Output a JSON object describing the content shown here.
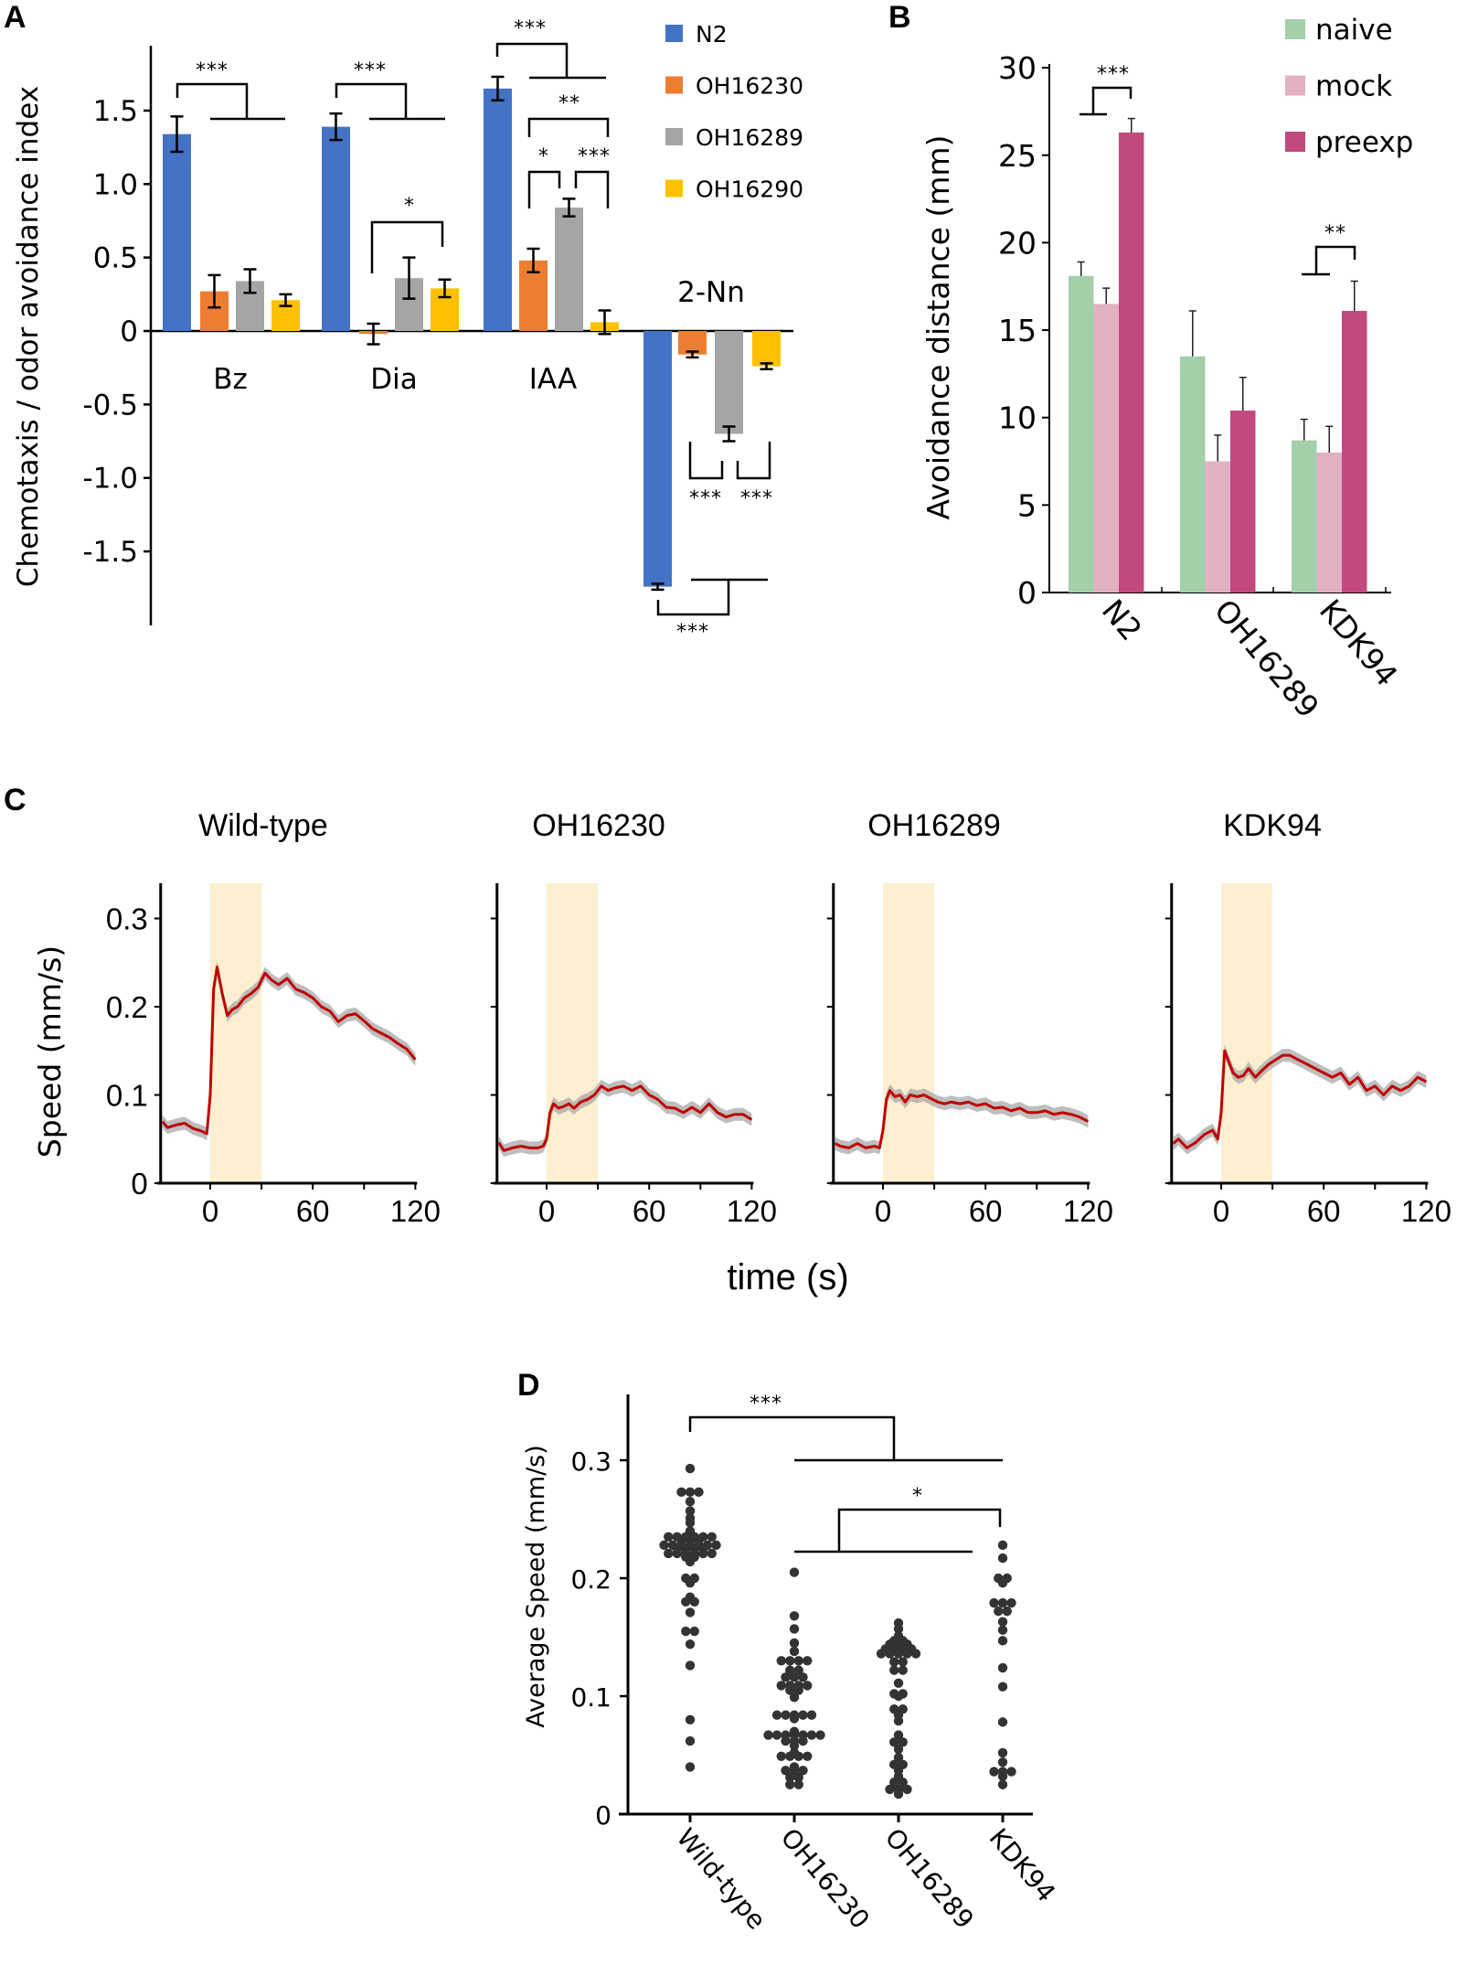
{
  "panel_labels": {
    "a": "A",
    "b": "B",
    "c": "C",
    "d": "D"
  },
  "chart_data": [
    {
      "id": "A",
      "type": "bar",
      "title": "",
      "xlabel": "",
      "ylabel": "Chemotaxis / odor avoidance index",
      "ylim": [
        -1.95,
        1.95
      ],
      "yticks": [
        1.5,
        1.0,
        0.5,
        0,
        -0.5,
        -1.0,
        -1.5
      ],
      "ytick_labels": [
        "1.5",
        "1.0",
        "0.5",
        "0",
        "-0.5",
        "-1.0",
        "-1.5"
      ],
      "categories": [
        "Bz",
        "Dia",
        "IAA",
        "2-Nn"
      ],
      "legend_position": "top-right",
      "series": [
        {
          "name": "N2",
          "color": "#4472c4",
          "values": [
            1.34,
            1.39,
            1.65,
            -1.74
          ],
          "errors": [
            0.12,
            0.09,
            0.08,
            0.02
          ]
        },
        {
          "name": "OH16230",
          "color": "#ed7d31",
          "values": [
            0.27,
            -0.02,
            0.48,
            -0.16
          ],
          "errors": [
            0.11,
            0.07,
            0.08,
            0.02
          ]
        },
        {
          "name": "OH16289",
          "color": "#a5a5a5",
          "values": [
            0.34,
            0.36,
            0.84,
            -0.7
          ],
          "errors": [
            0.08,
            0.14,
            0.06,
            0.05
          ]
        },
        {
          "name": "OH16290",
          "color": "#ffc000",
          "values": [
            0.21,
            0.29,
            0.06,
            -0.24
          ],
          "errors": [
            0.04,
            0.06,
            0.08,
            0.02
          ]
        }
      ],
      "significance": [
        {
          "category": "Bz",
          "compare": "N2 vs all mutants",
          "label": "***"
        },
        {
          "category": "Dia",
          "compare": "N2 vs all mutants",
          "label": "***"
        },
        {
          "category": "Dia",
          "compare": "OH16230 vs OH16290",
          "label": "*"
        },
        {
          "category": "IAA",
          "compare": "N2 vs all mutants",
          "label": "***"
        },
        {
          "category": "IAA",
          "compare": "OH16230 vs OH16290",
          "label": "**"
        },
        {
          "category": "IAA",
          "compare": "OH16230 vs OH16289",
          "label": "*"
        },
        {
          "category": "IAA",
          "compare": "OH16289 vs OH16290",
          "label": "***"
        },
        {
          "category": "2-Nn",
          "compare": "OH16230 vs OH16289",
          "label": "***"
        },
        {
          "category": "2-Nn",
          "compare": "OH16289 vs OH16290",
          "label": "***"
        },
        {
          "category": "2-Nn",
          "compare": "N2 vs all mutants",
          "label": "***"
        }
      ]
    },
    {
      "id": "B",
      "type": "bar",
      "title": "",
      "xlabel": "",
      "ylabel": "Avoidance distance (mm)",
      "ylim": [
        0,
        30
      ],
      "yticks": [
        0,
        5,
        10,
        15,
        20,
        25,
        30
      ],
      "ytick_labels": [
        "0",
        "5",
        "10",
        "15",
        "20",
        "25",
        "30"
      ],
      "categories": [
        "N2",
        "OH16289",
        "KDK94"
      ],
      "legend_position": "top-right",
      "series": [
        {
          "name": "naive",
          "color": "#a3cfa9",
          "values": [
            18.1,
            13.5,
            8.7
          ],
          "errors": [
            0.8,
            2.6,
            1.2
          ]
        },
        {
          "name": "mock",
          "color": "#e3b0c2",
          "values": [
            16.5,
            7.5,
            8.0
          ],
          "errors": [
            0.9,
            1.5,
            1.5
          ]
        },
        {
          "name": "preexp",
          "color": "#c2497d",
          "values": [
            26.3,
            10.4,
            16.1
          ],
          "errors": [
            0.8,
            1.9,
            1.7
          ]
        }
      ],
      "significance": [
        {
          "category": "N2",
          "compare": "naive/mock vs preexp",
          "label": "***"
        },
        {
          "category": "KDK94",
          "compare": "naive/mock vs preexp",
          "label": "**"
        }
      ]
    },
    {
      "id": "C",
      "type": "line",
      "xlabel": "time (s)",
      "ylabel": "Speed (mm/s)",
      "xlim": [
        -29,
        120
      ],
      "ylim": [
        0,
        0.34
      ],
      "xticks": [
        0,
        60,
        120
      ],
      "xtick_labels": [
        "0",
        "60",
        "120"
      ],
      "yticks": [
        0,
        0.1,
        0.2,
        0.3
      ],
      "ytick_labels": [
        "0",
        "0.1",
        "0.2",
        "0.3"
      ],
      "stimulus_window": [
        0,
        30
      ],
      "stimulus_color": "#fdefcf",
      "line_color": "#c00000",
      "sem_color": "#a8a8a8",
      "x": [
        -28,
        -25,
        -20,
        -15,
        -10,
        -5,
        -2,
        0,
        2,
        4,
        7,
        10,
        13,
        16,
        20,
        24,
        28,
        32,
        36,
        40,
        45,
        50,
        55,
        60,
        65,
        70,
        75,
        80,
        85,
        90,
        95,
        100,
        105,
        110,
        115,
        120
      ],
      "panels": [
        {
          "title": "Wild-type",
          "values": [
            0.07,
            0.063,
            0.066,
            0.068,
            0.062,
            0.059,
            0.056,
            0.1,
            0.22,
            0.245,
            0.215,
            0.19,
            0.197,
            0.2,
            0.21,
            0.215,
            0.222,
            0.238,
            0.23,
            0.225,
            0.232,
            0.22,
            0.216,
            0.21,
            0.2,
            0.195,
            0.183,
            0.19,
            0.192,
            0.184,
            0.175,
            0.17,
            0.165,
            0.158,
            0.152,
            0.14
          ]
        },
        {
          "title": "OH16230",
          "values": [
            0.046,
            0.037,
            0.04,
            0.042,
            0.04,
            0.04,
            0.042,
            0.05,
            0.08,
            0.09,
            0.085,
            0.087,
            0.09,
            0.085,
            0.092,
            0.095,
            0.1,
            0.11,
            0.105,
            0.108,
            0.11,
            0.105,
            0.11,
            0.1,
            0.095,
            0.086,
            0.085,
            0.08,
            0.086,
            0.08,
            0.09,
            0.08,
            0.075,
            0.078,
            0.078,
            0.072
          ]
        },
        {
          "title": "OH16289",
          "values": [
            0.045,
            0.042,
            0.04,
            0.045,
            0.04,
            0.042,
            0.04,
            0.06,
            0.095,
            0.105,
            0.098,
            0.1,
            0.092,
            0.1,
            0.098,
            0.1,
            0.096,
            0.092,
            0.09,
            0.092,
            0.09,
            0.092,
            0.088,
            0.09,
            0.085,
            0.086,
            0.082,
            0.085,
            0.08,
            0.08,
            0.082,
            0.078,
            0.08,
            0.078,
            0.075,
            0.07
          ]
        },
        {
          "title": "KDK94",
          "values": [
            0.045,
            0.05,
            0.04,
            0.046,
            0.055,
            0.06,
            0.05,
            0.08,
            0.15,
            0.14,
            0.125,
            0.12,
            0.122,
            0.13,
            0.12,
            0.128,
            0.135,
            0.14,
            0.145,
            0.145,
            0.14,
            0.135,
            0.13,
            0.125,
            0.12,
            0.125,
            0.112,
            0.12,
            0.105,
            0.11,
            0.1,
            0.11,
            0.105,
            0.11,
            0.12,
            0.115
          ]
        }
      ]
    },
    {
      "id": "D",
      "type": "scatter",
      "xlabel": "",
      "ylabel": "Average Speed (mm/s)",
      "ylim": [
        0,
        0.34
      ],
      "yticks": [
        0,
        0.1,
        0.2,
        0.3
      ],
      "ytick_labels": [
        "0",
        "0.1",
        "0.2",
        "0.3"
      ],
      "categories": [
        "Wild-type",
        "OH16230",
        "OH16289",
        "KDK94"
      ],
      "point_color": "#333333",
      "groups": [
        {
          "name": "Wild-type",
          "values": [
            0.293,
            0.273,
            0.273,
            0.273,
            0.265,
            0.257,
            0.251,
            0.247,
            0.24,
            0.235,
            0.235,
            0.235,
            0.235,
            0.235,
            0.235,
            0.232,
            0.232,
            0.232,
            0.228,
            0.228,
            0.228,
            0.228,
            0.228,
            0.228,
            0.228,
            0.225,
            0.225,
            0.225,
            0.225,
            0.221,
            0.221,
            0.221,
            0.221,
            0.221,
            0.221,
            0.218,
            0.218,
            0.214,
            0.2,
            0.2,
            0.196,
            0.184,
            0.18,
            0.18,
            0.171,
            0.155,
            0.155,
            0.144,
            0.126,
            0.08,
            0.062,
            0.04
          ]
        },
        {
          "name": "OH16230",
          "values": [
            0.205,
            0.168,
            0.157,
            0.145,
            0.138,
            0.13,
            0.13,
            0.13,
            0.13,
            0.122,
            0.122,
            0.116,
            0.116,
            0.116,
            0.109,
            0.109,
            0.109,
            0.109,
            0.105,
            0.105,
            0.099,
            0.084,
            0.084,
            0.084,
            0.084,
            0.084,
            0.081,
            0.07,
            0.067,
            0.067,
            0.067,
            0.067,
            0.067,
            0.067,
            0.067,
            0.062,
            0.062,
            0.062,
            0.058,
            0.052,
            0.049,
            0.049,
            0.049,
            0.049,
            0.04,
            0.037,
            0.037,
            0.037,
            0.031,
            0.031,
            0.025,
            0.025
          ]
        },
        {
          "name": "OH16289",
          "values": [
            0.162,
            0.157,
            0.151,
            0.147,
            0.147,
            0.144,
            0.144,
            0.144,
            0.14,
            0.14,
            0.14,
            0.14,
            0.136,
            0.136,
            0.136,
            0.136,
            0.136,
            0.129,
            0.129,
            0.122,
            0.122,
            0.111,
            0.102,
            0.102,
            0.1,
            0.089,
            0.089,
            0.084,
            0.079,
            0.067,
            0.061,
            0.061,
            0.055,
            0.048,
            0.042,
            0.042,
            0.037,
            0.032,
            0.027,
            0.027,
            0.023,
            0.023,
            0.021,
            0.021,
            0.021,
            0.017
          ]
        },
        {
          "name": "KDK94",
          "values": [
            0.228,
            0.217,
            0.2,
            0.2,
            0.196,
            0.179,
            0.179,
            0.179,
            0.172,
            0.172,
            0.163,
            0.156,
            0.147,
            0.124,
            0.108,
            0.078,
            0.052,
            0.044,
            0.036,
            0.036,
            0.036,
            0.032,
            0.025
          ]
        }
      ],
      "significance": [
        {
          "compare": "Wild-type vs mutants",
          "label": "***"
        },
        {
          "compare": "OH16230/OH16289 vs KDK94",
          "label": "*"
        }
      ]
    }
  ]
}
